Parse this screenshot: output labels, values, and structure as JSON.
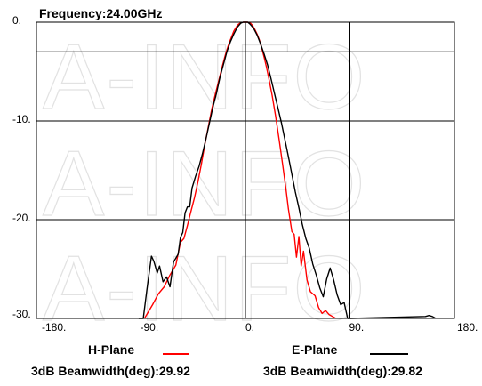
{
  "chart_data": {
    "type": "line",
    "title": "Frequency:24.00GHz",
    "xlim": [
      -180,
      180
    ],
    "ylim": [
      -30,
      0
    ],
    "x_ticks": [
      -180,
      -90,
      0,
      90,
      180
    ],
    "x_tick_labels": [
      "-180.",
      "-90.",
      "0.",
      "90.",
      "180."
    ],
    "y_ticks": [
      0,
      -10,
      -20,
      -30
    ],
    "y_tick_labels": [
      "0.",
      "-10.",
      "-20.",
      "-30."
    ],
    "horizontal_gridlines": [
      0,
      -3,
      -10,
      -20,
      -30
    ],
    "vertical_gridlines": [
      -180,
      -90,
      0,
      90,
      180
    ],
    "grid": true,
    "watermark": "A-INFO",
    "series": [
      {
        "name": "H-Plane",
        "color": "#ff0000",
        "beamwidth_label": "3dB Beamwidth(deg):29.92",
        "x": [
          -87,
          -80,
          -75,
          -70,
          -65,
          -60,
          -56,
          -53,
          -50,
          -47,
          -44,
          -41,
          -38,
          -35,
          -32,
          -29,
          -26,
          -23,
          -20,
          -18,
          -16,
          -14,
          -12,
          -10,
          -8,
          -6,
          -4,
          -2,
          0,
          2,
          4,
          6,
          8,
          10,
          12,
          14,
          16,
          18,
          20,
          23,
          26,
          29,
          32,
          35,
          37,
          40,
          42,
          44,
          46,
          48,
          50,
          53,
          56,
          60,
          63,
          66,
          69,
          72,
          75,
          78
        ],
        "y": [
          -30,
          -28.6,
          -27.5,
          -26.8,
          -25.6,
          -24.6,
          -22.3,
          -21.9,
          -20.6,
          -19.2,
          -17.8,
          -16.2,
          -14.4,
          -12.4,
          -10.6,
          -8.8,
          -7.3,
          -5.9,
          -4.5,
          -3.6,
          -2.8,
          -2.1,
          -1.5,
          -0.9,
          -0.5,
          -0.2,
          -0.05,
          0,
          0,
          0,
          -0.05,
          -0.3,
          -0.7,
          -1.2,
          -1.8,
          -2.6,
          -3.5,
          -4.5,
          -5.6,
          -7.4,
          -9.5,
          -11.9,
          -14.4,
          -17.0,
          -18.9,
          -21.2,
          -21.5,
          -23.8,
          -21.7,
          -24.7,
          -23.2,
          -26.1,
          -27.3,
          -27.7,
          -28.9,
          -29.5,
          -29.2,
          -29.6,
          -29.8,
          -30
        ]
      },
      {
        "name": "E-Plane",
        "color": "#000000",
        "beamwidth_label": "3dB Beamwidth(deg):29.82",
        "x": [
          -92,
          -88,
          -85,
          -81,
          -79,
          -76,
          -74,
          -71,
          -68,
          -65,
          -62,
          -58,
          -56,
          -54,
          -52,
          -50,
          -48,
          -46,
          -43,
          -40,
          -37,
          -34,
          -31,
          -28,
          -25,
          -22,
          -19,
          -16,
          -13,
          -10,
          -7,
          -4,
          -2,
          0,
          2,
          4,
          7,
          10,
          13,
          16,
          19,
          22,
          25,
          28,
          31,
          34,
          37,
          40,
          43,
          46,
          49,
          52,
          55,
          58,
          61,
          64,
          67,
          70,
          73,
          76,
          79,
          82,
          85,
          88,
          90,
          155,
          158,
          161,
          164
        ],
        "y": [
          -30,
          -30,
          -27.2,
          -23.7,
          -24.2,
          -25.4,
          -24.7,
          -26.3,
          -25.8,
          -26.8,
          -24.3,
          -23.5,
          -21.8,
          -21.3,
          -19.3,
          -18.7,
          -18.7,
          -16.8,
          -15.6,
          -14.6,
          -13.3,
          -11.8,
          -10.2,
          -8.6,
          -7.2,
          -5.6,
          -4.3,
          -3.0,
          -2.0,
          -1.2,
          -0.5,
          -0.1,
          0,
          0,
          0,
          -0.2,
          -0.6,
          -1.3,
          -2.2,
          -3.2,
          -4.3,
          -5.7,
          -7.2,
          -8.7,
          -10.2,
          -11.9,
          -13.6,
          -15.4,
          -17.2,
          -18.8,
          -20.5,
          -21.9,
          -22.9,
          -24.5,
          -25.6,
          -26.9,
          -27.8,
          -26.0,
          -24.9,
          -26.1,
          -27.6,
          -28.6,
          -28.4,
          -30,
          -30,
          -29.8,
          -29.7,
          -29.8,
          -30
        ]
      }
    ]
  }
}
